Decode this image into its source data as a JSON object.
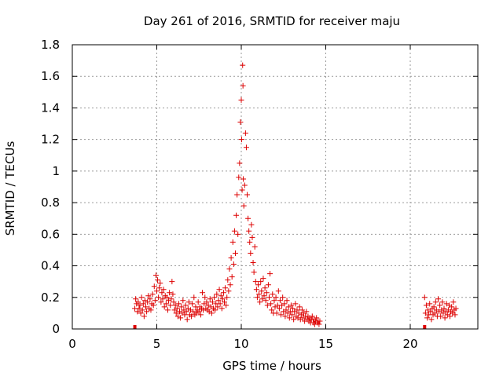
{
  "chart_data": {
    "type": "scatter",
    "title": "Day 261 of 2016, SRMTID for receiver maju",
    "xlabel": "GPS time / hours",
    "ylabel": "SRMTID / TECUs",
    "xlim": [
      0,
      24
    ],
    "ylim": [
      0,
      1.8
    ],
    "xticks": [
      0,
      5,
      10,
      15,
      20
    ],
    "yticks": [
      0,
      0.2,
      0.4,
      0.6,
      0.8,
      1,
      1.2,
      1.4,
      1.6,
      1.8
    ],
    "xtick_labels": [
      "0",
      "5",
      "10",
      "15",
      "20"
    ],
    "ytick_labels": [
      "0",
      "0.2",
      "0.4",
      "0.6",
      "0.8",
      "1",
      "1.2",
      "1.4",
      "1.6",
      "1.8"
    ],
    "grid": true,
    "marker": "plus",
    "color": "#dd0000",
    "series": [
      {
        "name": "SRMTID",
        "points": [
          [
            3.7,
            0.13
          ],
          [
            3.75,
            0.19
          ],
          [
            3.8,
            0.16
          ],
          [
            3.85,
            0.11
          ],
          [
            3.9,
            0.17
          ],
          [
            3.95,
            0.13
          ],
          [
            4.0,
            0.15
          ],
          [
            4.05,
            0.1
          ],
          [
            4.1,
            0.2
          ],
          [
            4.15,
            0.12
          ],
          [
            4.2,
            0.16
          ],
          [
            4.25,
            0.08
          ],
          [
            4.3,
            0.18
          ],
          [
            4.35,
            0.14
          ],
          [
            4.4,
            0.11
          ],
          [
            4.45,
            0.17
          ],
          [
            4.5,
            0.21
          ],
          [
            4.55,
            0.13
          ],
          [
            4.6,
            0.19
          ],
          [
            4.65,
            0.12
          ],
          [
            4.7,
            0.16
          ],
          [
            4.75,
            0.22
          ],
          [
            4.8,
            0.15
          ],
          [
            4.85,
            0.27
          ],
          [
            4.9,
            0.18
          ],
          [
            4.95,
            0.34
          ],
          [
            5.0,
            0.24
          ],
          [
            5.05,
            0.31
          ],
          [
            5.1,
            0.2
          ],
          [
            5.15,
            0.26
          ],
          [
            5.2,
            0.29
          ],
          [
            5.25,
            0.17
          ],
          [
            5.3,
            0.23
          ],
          [
            5.35,
            0.19
          ],
          [
            5.4,
            0.25
          ],
          [
            5.45,
            0.14
          ],
          [
            5.5,
            0.21
          ],
          [
            5.55,
            0.16
          ],
          [
            5.6,
            0.2
          ],
          [
            5.65,
            0.12
          ],
          [
            5.7,
            0.18
          ],
          [
            5.75,
            0.23
          ],
          [
            5.8,
            0.15
          ],
          [
            5.85,
            0.19
          ],
          [
            5.9,
            0.3
          ],
          [
            5.95,
            0.22
          ],
          [
            6.0,
            0.17
          ],
          [
            6.05,
            0.12
          ],
          [
            6.1,
            0.15
          ],
          [
            6.15,
            0.1
          ],
          [
            6.2,
            0.13
          ],
          [
            6.25,
            0.08
          ],
          [
            6.3,
            0.16
          ],
          [
            6.35,
            0.11
          ],
          [
            6.4,
            0.07
          ],
          [
            6.45,
            0.14
          ],
          [
            6.5,
            0.1
          ],
          [
            6.55,
            0.18
          ],
          [
            6.6,
            0.12
          ],
          [
            6.65,
            0.09
          ],
          [
            6.7,
            0.15
          ],
          [
            6.75,
            0.11
          ],
          [
            6.8,
            0.06
          ],
          [
            6.85,
            0.13
          ],
          [
            6.9,
            0.17
          ],
          [
            6.95,
            0.09
          ],
          [
            7.0,
            0.12
          ],
          [
            7.05,
            0.08
          ],
          [
            7.1,
            0.16
          ],
          [
            7.15,
            0.11
          ],
          [
            7.2,
            0.2
          ],
          [
            7.25,
            0.09
          ],
          [
            7.3,
            0.14
          ],
          [
            7.35,
            0.1
          ],
          [
            7.4,
            0.12
          ],
          [
            7.45,
            0.17
          ],
          [
            7.5,
            0.11
          ],
          [
            7.55,
            0.14
          ],
          [
            7.6,
            0.09
          ],
          [
            7.65,
            0.13
          ],
          [
            7.7,
            0.23
          ],
          [
            7.75,
            0.12
          ],
          [
            7.8,
            0.16
          ],
          [
            7.85,
            0.2
          ],
          [
            7.9,
            0.13
          ],
          [
            7.95,
            0.17
          ],
          [
            8.0,
            0.12
          ],
          [
            8.05,
            0.15
          ],
          [
            8.1,
            0.11
          ],
          [
            8.15,
            0.19
          ],
          [
            8.2,
            0.14
          ],
          [
            8.25,
            0.1
          ],
          [
            8.3,
            0.17
          ],
          [
            8.35,
            0.13
          ],
          [
            8.4,
            0.2
          ],
          [
            8.45,
            0.12
          ],
          [
            8.5,
            0.16
          ],
          [
            8.55,
            0.22
          ],
          [
            8.6,
            0.14
          ],
          [
            8.65,
            0.18
          ],
          [
            8.7,
            0.25
          ],
          [
            8.75,
            0.16
          ],
          [
            8.8,
            0.21
          ],
          [
            8.85,
            0.13
          ],
          [
            8.9,
            0.19
          ],
          [
            8.95,
            0.23
          ],
          [
            9.0,
            0.17
          ],
          [
            9.05,
            0.26
          ],
          [
            9.1,
            0.15
          ],
          [
            9.15,
            0.2
          ],
          [
            9.2,
            0.31
          ],
          [
            9.25,
            0.24
          ],
          [
            9.3,
            0.38
          ],
          [
            9.35,
            0.28
          ],
          [
            9.4,
            0.45
          ],
          [
            9.45,
            0.33
          ],
          [
            9.5,
            0.55
          ],
          [
            9.55,
            0.41
          ],
          [
            9.6,
            0.62
          ],
          [
            9.65,
            0.48
          ],
          [
            9.7,
            0.72
          ],
          [
            9.75,
            0.85
          ],
          [
            9.8,
            0.6
          ],
          [
            9.85,
            0.96
          ],
          [
            9.9,
            1.05
          ],
          [
            9.95,
            1.31
          ],
          [
            10.0,
            1.45
          ],
          [
            10.02,
            1.2
          ],
          [
            10.05,
            0.88
          ],
          [
            10.08,
            1.67
          ],
          [
            10.1,
            1.54
          ],
          [
            10.12,
            0.95
          ],
          [
            10.15,
            0.78
          ],
          [
            10.2,
            0.91
          ],
          [
            10.25,
            1.24
          ],
          [
            10.3,
            1.15
          ],
          [
            10.35,
            0.85
          ],
          [
            10.4,
            0.7
          ],
          [
            10.45,
            0.62
          ],
          [
            10.5,
            0.55
          ],
          [
            10.55,
            0.48
          ],
          [
            10.6,
            0.66
          ],
          [
            10.65,
            0.58
          ],
          [
            10.7,
            0.42
          ],
          [
            10.75,
            0.36
          ],
          [
            10.8,
            0.52
          ],
          [
            10.85,
            0.3
          ],
          [
            10.9,
            0.25
          ],
          [
            10.95,
            0.2
          ],
          [
            11.0,
            0.28
          ],
          [
            11.05,
            0.22
          ],
          [
            11.1,
            0.17
          ],
          [
            11.15,
            0.3
          ],
          [
            11.2,
            0.24
          ],
          [
            11.25,
            0.19
          ],
          [
            11.3,
            0.32
          ],
          [
            11.35,
            0.21
          ],
          [
            11.4,
            0.26
          ],
          [
            11.45,
            0.18
          ],
          [
            11.5,
            0.23
          ],
          [
            11.55,
            0.15
          ],
          [
            11.6,
            0.28
          ],
          [
            11.65,
            0.2
          ],
          [
            11.7,
            0.35
          ],
          [
            11.75,
            0.16
          ],
          [
            11.8,
            0.12
          ],
          [
            11.85,
            0.22
          ],
          [
            11.9,
            0.1
          ],
          [
            11.95,
            0.18
          ],
          [
            12.0,
            0.14
          ],
          [
            12.05,
            0.2
          ],
          [
            12.1,
            0.1
          ],
          [
            12.15,
            0.15
          ],
          [
            12.2,
            0.24
          ],
          [
            12.25,
            0.13
          ],
          [
            12.3,
            0.18
          ],
          [
            12.35,
            0.09
          ],
          [
            12.4,
            0.15
          ],
          [
            12.45,
            0.2
          ],
          [
            12.5,
            0.11
          ],
          [
            12.55,
            0.16
          ],
          [
            12.6,
            0.08
          ],
          [
            12.65,
            0.12
          ],
          [
            12.7,
            0.18
          ],
          [
            12.75,
            0.1
          ],
          [
            12.8,
            0.14
          ],
          [
            12.85,
            0.07
          ],
          [
            12.9,
            0.11
          ],
          [
            12.95,
            0.15
          ],
          [
            13.0,
            0.09
          ],
          [
            13.05,
            0.13
          ],
          [
            13.1,
            0.06
          ],
          [
            13.15,
            0.11
          ],
          [
            13.2,
            0.16
          ],
          [
            13.25,
            0.08
          ],
          [
            13.3,
            0.12
          ],
          [
            13.35,
            0.07
          ],
          [
            13.4,
            0.1
          ],
          [
            13.45,
            0.14
          ],
          [
            13.5,
            0.06
          ],
          [
            13.55,
            0.09
          ],
          [
            13.6,
            0.12
          ],
          [
            13.65,
            0.07
          ],
          [
            13.7,
            0.1
          ],
          [
            13.75,
            0.05
          ],
          [
            13.8,
            0.08
          ],
          [
            13.85,
            0.11
          ],
          [
            13.9,
            0.06
          ],
          [
            13.95,
            0.08
          ],
          [
            14.0,
            0.05
          ],
          [
            14.05,
            0.07
          ],
          [
            14.1,
            0.04
          ],
          [
            14.15,
            0.06
          ],
          [
            14.2,
            0.08
          ],
          [
            14.25,
            0.04
          ],
          [
            14.3,
            0.06
          ],
          [
            14.35,
            0.03
          ],
          [
            14.4,
            0.05
          ],
          [
            14.45,
            0.07
          ],
          [
            14.5,
            0.04
          ],
          [
            14.55,
            0.05
          ],
          [
            14.6,
            0.03
          ],
          [
            14.65,
            0.05
          ],
          [
            20.85,
            0.2
          ],
          [
            20.9,
            0.1
          ],
          [
            20.95,
            0.15
          ],
          [
            21.0,
            0.07
          ],
          [
            21.05,
            0.12
          ],
          [
            21.1,
            0.09
          ],
          [
            21.15,
            0.16
          ],
          [
            21.2,
            0.11
          ],
          [
            21.25,
            0.06
          ],
          [
            21.3,
            0.13
          ],
          [
            21.35,
            0.09
          ],
          [
            21.4,
            0.14
          ],
          [
            21.45,
            0.1
          ],
          [
            21.5,
            0.17
          ],
          [
            21.55,
            0.12
          ],
          [
            21.6,
            0.08
          ],
          [
            21.65,
            0.19
          ],
          [
            21.7,
            0.11
          ],
          [
            21.75,
            0.15
          ],
          [
            21.8,
            0.08
          ],
          [
            21.85,
            0.12
          ],
          [
            21.9,
            0.17
          ],
          [
            21.95,
            0.1
          ],
          [
            22.0,
            0.13
          ],
          [
            22.05,
            0.07
          ],
          [
            22.1,
            0.11
          ],
          [
            22.15,
            0.16
          ],
          [
            22.2,
            0.09
          ],
          [
            22.25,
            0.12
          ],
          [
            22.3,
            0.15
          ],
          [
            22.35,
            0.08
          ],
          [
            22.4,
            0.11
          ],
          [
            22.45,
            0.14
          ],
          [
            22.5,
            0.1
          ],
          [
            22.55,
            0.17
          ],
          [
            22.6,
            0.12
          ],
          [
            22.65,
            0.09
          ],
          [
            22.7,
            0.13
          ]
        ]
      }
    ],
    "baseline_markers": [
      {
        "x": 3.7,
        "y": 0.0
      },
      {
        "x": 20.85,
        "y": 0.0
      }
    ]
  }
}
